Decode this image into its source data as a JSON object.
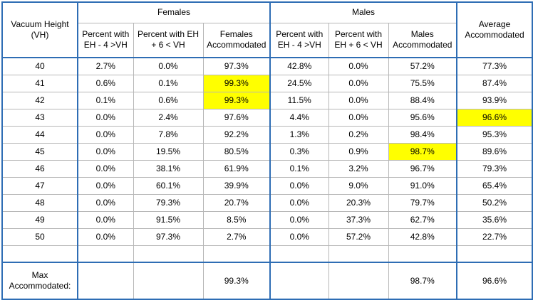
{
  "header": {
    "vh_label": "Vacuum Height (VH)",
    "females_group": "Females",
    "males_group": "Males",
    "avg_label": "Average Accommodated",
    "pct_low": "Percent with EH - 4 >VH",
    "pct_high": "Percent with EH + 6 < VH",
    "females_acc": "Females Accommodated",
    "males_acc": "Males Accommodated"
  },
  "rows": [
    {
      "vh": "40",
      "f_low": "2.7%",
      "f_high": "0.0%",
      "f_acc": "97.3%",
      "m_low": "42.8%",
      "m_high": "0.0%",
      "m_acc": "57.2%",
      "avg": "77.3%"
    },
    {
      "vh": "41",
      "f_low": "0.6%",
      "f_high": "0.1%",
      "f_acc": "99.3%",
      "m_low": "24.5%",
      "m_high": "0.0%",
      "m_acc": "75.5%",
      "avg": "87.4%"
    },
    {
      "vh": "42",
      "f_low": "0.1%",
      "f_high": "0.6%",
      "f_acc": "99.3%",
      "m_low": "11.5%",
      "m_high": "0.0%",
      "m_acc": "88.4%",
      "avg": "93.9%"
    },
    {
      "vh": "43",
      "f_low": "0.0%",
      "f_high": "2.4%",
      "f_acc": "97.6%",
      "m_low": "4.4%",
      "m_high": "0.0%",
      "m_acc": "95.6%",
      "avg": "96.6%"
    },
    {
      "vh": "44",
      "f_low": "0.0%",
      "f_high": "7.8%",
      "f_acc": "92.2%",
      "m_low": "1.3%",
      "m_high": "0.2%",
      "m_acc": "98.4%",
      "avg": "95.3%"
    },
    {
      "vh": "45",
      "f_low": "0.0%",
      "f_high": "19.5%",
      "f_acc": "80.5%",
      "m_low": "0.3%",
      "m_high": "0.9%",
      "m_acc": "98.7%",
      "avg": "89.6%"
    },
    {
      "vh": "46",
      "f_low": "0.0%",
      "f_high": "38.1%",
      "f_acc": "61.9%",
      "m_low": "0.1%",
      "m_high": "3.2%",
      "m_acc": "96.7%",
      "avg": "79.3%"
    },
    {
      "vh": "47",
      "f_low": "0.0%",
      "f_high": "60.1%",
      "f_acc": "39.9%",
      "m_low": "0.0%",
      "m_high": "9.0%",
      "m_acc": "91.0%",
      "avg": "65.4%"
    },
    {
      "vh": "48",
      "f_low": "0.0%",
      "f_high": "79.3%",
      "f_acc": "20.7%",
      "m_low": "0.0%",
      "m_high": "20.3%",
      "m_acc": "79.7%",
      "avg": "50.2%"
    },
    {
      "vh": "49",
      "f_low": "0.0%",
      "f_high": "91.5%",
      "f_acc": "8.5%",
      "m_low": "0.0%",
      "m_high": "37.3%",
      "m_acc": "62.7%",
      "avg": "35.6%"
    },
    {
      "vh": "50",
      "f_low": "0.0%",
      "f_high": "97.3%",
      "f_acc": "2.7%",
      "m_low": "0.0%",
      "m_high": "57.2%",
      "m_acc": "42.8%",
      "avg": "22.7%"
    }
  ],
  "highlights": {
    "f_acc": [
      "41",
      "42"
    ],
    "m_acc": [
      "45"
    ],
    "avg": [
      "43"
    ]
  },
  "highlight_color": "#ffff00",
  "border_color": "#2e6db4",
  "footer": {
    "label": "Max Accommodated:",
    "f_max": "99.3%",
    "m_max": "98.7%",
    "avg_max": "96.6%"
  }
}
